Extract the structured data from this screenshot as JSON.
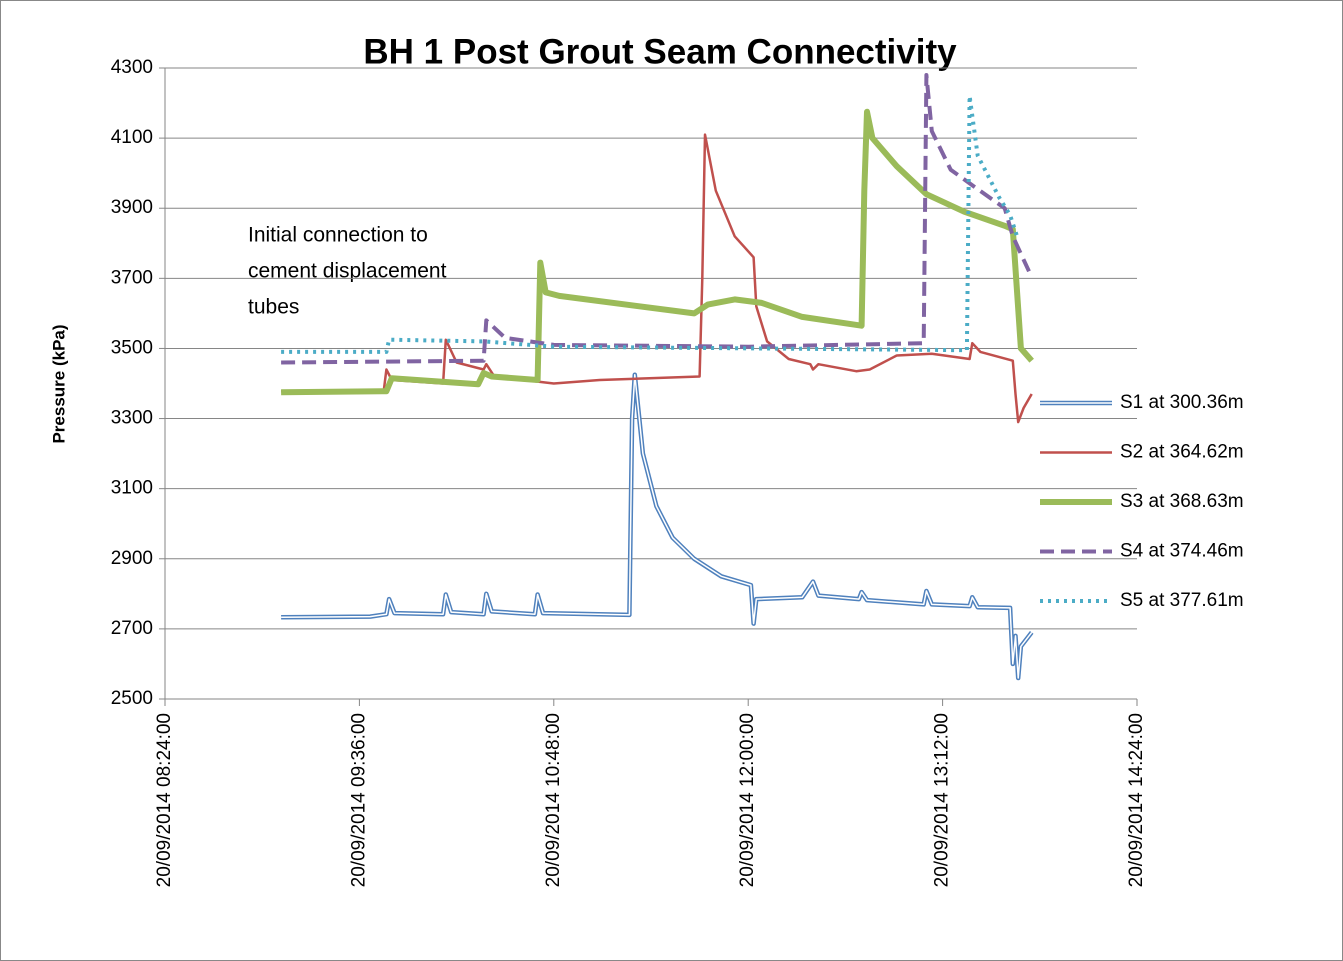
{
  "chart_data": {
    "type": "line",
    "title": "BH 1  Post  Grout  Seam  Connectivity",
    "ylabel": "Pressure (kPa)",
    "annotation": [
      "Initial connection to",
      "cement displacement",
      "tubes"
    ],
    "xlim": [
      "2014-09-20T08:24",
      "2014-09-20T14:24"
    ],
    "xticks": [
      {
        "value": "2014-09-20T08:24",
        "label": "20/09/2014 08:24:00"
      },
      {
        "value": "2014-09-20T09:36",
        "label": "20/09/2014 09:36:00"
      },
      {
        "value": "2014-09-20T10:48",
        "label": "20/09/2014 10:48:00"
      },
      {
        "value": "2014-09-20T12:00",
        "label": "20/09/2014 12:00:00"
      },
      {
        "value": "2014-09-20T13:12",
        "label": "20/09/2014 13:12:00"
      },
      {
        "value": "2014-09-20T14:24",
        "label": "20/09/2014 14:24:00"
      }
    ],
    "ylim": [
      2500,
      4300
    ],
    "yticks": [
      2500,
      2700,
      2900,
      3100,
      3300,
      3500,
      3700,
      3900,
      4100,
      4300
    ],
    "grid": true,
    "legend": "right",
    "series": [
      {
        "name": "S1 at 300.36m",
        "color": "#4f81bd",
        "style": "double",
        "width": 4.5,
        "x": [
          "2014-09-20T09:07",
          "2014-09-20T09:40",
          "2014-09-20T09:46",
          "2014-09-20T09:47",
          "2014-09-20T09:49",
          "2014-09-20T10:07",
          "2014-09-20T10:08",
          "2014-09-20T10:10",
          "2014-09-20T10:22",
          "2014-09-20T10:23",
          "2014-09-20T10:25",
          "2014-09-20T10:41",
          "2014-09-20T10:42",
          "2014-09-20T10:44",
          "2014-09-20T11:16",
          "2014-09-20T11:17",
          "2014-09-20T11:18",
          "2014-09-20T11:21",
          "2014-09-20T11:26",
          "2014-09-20T11:32",
          "2014-09-20T11:40",
          "2014-09-20T11:50",
          "2014-09-20T12:01",
          "2014-09-20T12:02",
          "2014-09-20T12:03",
          "2014-09-20T12:20",
          "2014-09-20T12:24",
          "2014-09-20T12:26",
          "2014-09-20T12:41",
          "2014-09-20T12:42",
          "2014-09-20T12:44",
          "2014-09-20T13:05",
          "2014-09-20T13:06",
          "2014-09-20T13:08",
          "2014-09-20T13:22",
          "2014-09-20T13:23",
          "2014-09-20T13:25",
          "2014-09-20T13:37",
          "2014-09-20T13:38",
          "2014-09-20T13:39",
          "2014-09-20T13:40",
          "2014-09-20T13:41",
          "2014-09-20T13:45"
        ],
        "values": [
          2733,
          2735,
          2742,
          2785,
          2745,
          2742,
          2798,
          2748,
          2742,
          2800,
          2750,
          2742,
          2798,
          2745,
          2740,
          3300,
          3425,
          3200,
          3050,
          2960,
          2900,
          2850,
          2825,
          2715,
          2785,
          2790,
          2835,
          2795,
          2785,
          2805,
          2782,
          2770,
          2808,
          2770,
          2765,
          2790,
          2762,
          2760,
          2600,
          2680,
          2560,
          2650,
          2690
        ]
      },
      {
        "name": "S2 at 364.62m",
        "color": "#c0504d",
        "style": "solid",
        "width": 2.5,
        "x": [
          "2014-09-20T09:07",
          "2014-09-20T09:45",
          "2014-09-20T09:46",
          "2014-09-20T09:48",
          "2014-09-20T10:07",
          "2014-09-20T10:08",
          "2014-09-20T10:12",
          "2014-09-20T10:22",
          "2014-09-20T10:23",
          "2014-09-20T10:26",
          "2014-09-20T10:48",
          "2014-09-20T11:05",
          "2014-09-20T11:42",
          "2014-09-20T11:43",
          "2014-09-20T11:44",
          "2014-09-20T11:48",
          "2014-09-20T11:55",
          "2014-09-20T12:02",
          "2014-09-20T12:03",
          "2014-09-20T12:07",
          "2014-09-20T12:15",
          "2014-09-20T12:23",
          "2014-09-20T12:24",
          "2014-09-20T12:26",
          "2014-09-20T12:40",
          "2014-09-20T12:45",
          "2014-09-20T12:55",
          "2014-09-20T13:08",
          "2014-09-20T13:22",
          "2014-09-20T13:23",
          "2014-09-20T13:26",
          "2014-09-20T13:38",
          "2014-09-20T13:39",
          "2014-09-20T13:40",
          "2014-09-20T13:42",
          "2014-09-20T13:45"
        ],
        "values": [
          3378,
          3378,
          3440,
          3410,
          3400,
          3525,
          3460,
          3440,
          3455,
          3420,
          3400,
          3410,
          3420,
          3700,
          4110,
          3950,
          3820,
          3760,
          3620,
          3520,
          3470,
          3455,
          3440,
          3455,
          3435,
          3440,
          3480,
          3485,
          3470,
          3515,
          3490,
          3465,
          3370,
          3290,
          3330,
          3370
        ]
      },
      {
        "name": "S3 at 368.63m",
        "color": "#9bbb59",
        "style": "solid",
        "width": 6,
        "x": [
          "2014-09-20T09:07",
          "2014-09-20T09:46",
          "2014-09-20T09:48",
          "2014-09-20T10:20",
          "2014-09-20T10:22",
          "2014-09-20T10:25",
          "2014-09-20T10:42",
          "2014-09-20T10:43",
          "2014-09-20T10:45",
          "2014-09-20T10:50",
          "2014-09-20T11:40",
          "2014-09-20T11:45",
          "2014-09-20T11:55",
          "2014-09-20T12:05",
          "2014-09-20T12:20",
          "2014-09-20T12:42",
          "2014-09-20T12:43",
          "2014-09-20T12:44",
          "2014-09-20T12:46",
          "2014-09-20T12:55",
          "2014-09-20T13:06",
          "2014-09-20T13:20",
          "2014-09-20T13:35",
          "2014-09-20T13:38",
          "2014-09-20T13:41",
          "2014-09-20T13:45"
        ],
        "values": [
          3375,
          3378,
          3415,
          3398,
          3430,
          3420,
          3410,
          3745,
          3660,
          3650,
          3600,
          3625,
          3640,
          3630,
          3590,
          3565,
          3950,
          4175,
          4100,
          4020,
          3940,
          3890,
          3850,
          3840,
          3500,
          3465
        ]
      },
      {
        "name": "S4 at 374.46m",
        "color": "#8064a2",
        "style": "dashed",
        "width": 4,
        "x": [
          "2014-09-20T09:07",
          "2014-09-20T10:22",
          "2014-09-20T10:23",
          "2014-09-20T10:30",
          "2014-09-20T10:48",
          "2014-09-20T12:00",
          "2014-09-20T13:05",
          "2014-09-20T13:06",
          "2014-09-20T13:08",
          "2014-09-20T13:15",
          "2014-09-20T13:24",
          "2014-09-20T13:35",
          "2014-09-20T13:38",
          "2014-09-20T13:44"
        ],
        "values": [
          3460,
          3465,
          3580,
          3530,
          3510,
          3505,
          3515,
          4280,
          4120,
          4010,
          3960,
          3900,
          3820,
          3720
        ]
      },
      {
        "name": "S5 at 377.61m",
        "color": "#4bacc6",
        "style": "dotted",
        "width": 4,
        "x": [
          "2014-09-20T09:07",
          "2014-09-20T09:46",
          "2014-09-20T09:47",
          "2014-09-20T10:22",
          "2014-09-20T10:48",
          "2014-09-20T13:21",
          "2014-09-20T13:22",
          "2014-09-20T13:25",
          "2014-09-20T13:33",
          "2014-09-20T13:37",
          "2014-09-20T13:40"
        ],
        "values": [
          3490,
          3490,
          3525,
          3520,
          3505,
          3495,
          4220,
          4050,
          3930,
          3880,
          3810
        ]
      }
    ]
  }
}
